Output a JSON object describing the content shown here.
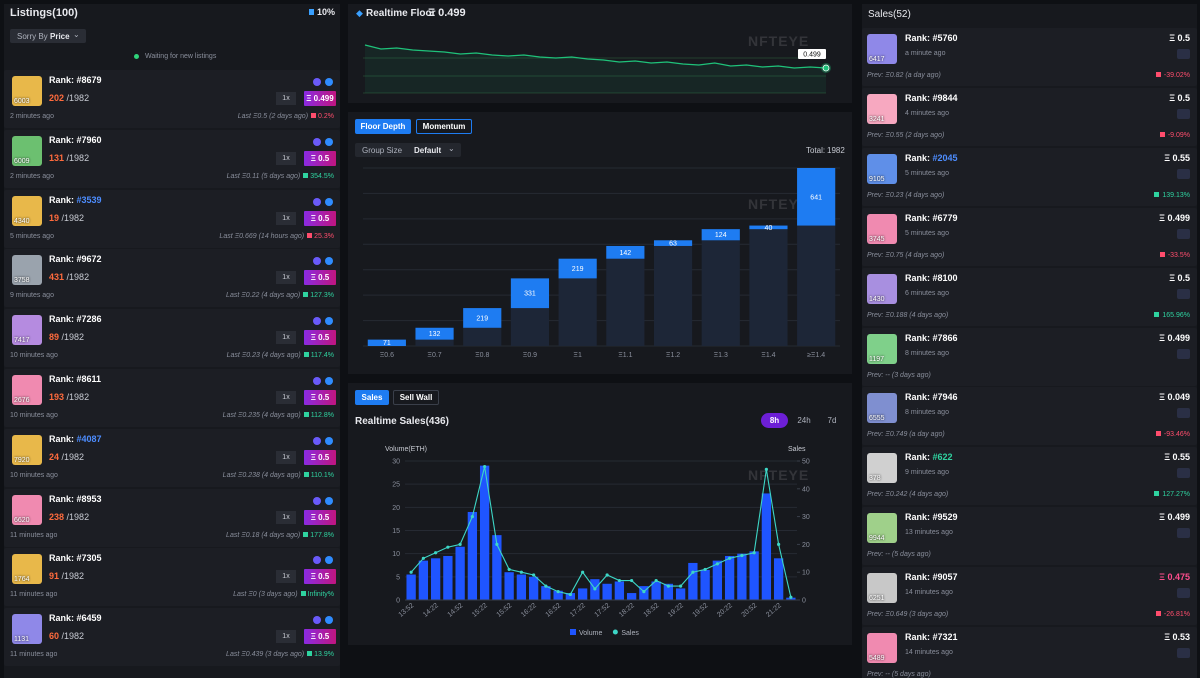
{
  "listings": {
    "title": "Listings(100)",
    "badge": "10%",
    "sort_label": "Sorry By",
    "sort_value": "Price",
    "status": "Waiting for new listings",
    "rank_label": "Rank:",
    "items": [
      {
        "rank": "#8679",
        "rank_color": "#ffffff",
        "avatar": "6003",
        "avatar_color": "#e8b84a",
        "position": "202",
        "total": "/1982",
        "qty": "1x",
        "price": "Ξ 0.499",
        "time": "2 minutes ago",
        "last": "Last Ξ0.5 (2 days ago)",
        "change": "0.2%",
        "change_color": "#ff4d6d"
      },
      {
        "rank": "#7960",
        "rank_color": "#ffffff",
        "avatar": "6009",
        "avatar_color": "#6cc070",
        "position": "131",
        "total": "/1982",
        "qty": "1x",
        "price": "Ξ 0.5",
        "time": "2 minutes ago",
        "last": "Last Ξ0.11 (5 days ago)",
        "change": "354.5%",
        "change_color": "#2fd3a0"
      },
      {
        "rank": "#3539",
        "rank_color": "#4d8dff",
        "avatar": "4340",
        "avatar_color": "#e8b84a",
        "position": "19",
        "total": "/1982",
        "qty": "1x",
        "price": "Ξ 0.5",
        "time": "5 minutes ago",
        "last": "Last Ξ0.669 (14 hours ago)",
        "change": "25.3%",
        "change_color": "#ff4d6d"
      },
      {
        "rank": "#9672",
        "rank_color": "#ffffff",
        "avatar": "3758",
        "avatar_color": "#9aa3ad",
        "position": "431",
        "total": "/1982",
        "qty": "1x",
        "price": "Ξ 0.5",
        "time": "9 minutes ago",
        "last": "Last Ξ0.22 (4 days ago)",
        "change": "127.3%",
        "change_color": "#2fd3a0"
      },
      {
        "rank": "#7286",
        "rank_color": "#ffffff",
        "avatar": "7417",
        "avatar_color": "#b58be0",
        "position": "89",
        "total": "/1982",
        "qty": "1x",
        "price": "Ξ 0.5",
        "time": "10 minutes ago",
        "last": "Last Ξ0.23 (4 days ago)",
        "change": "117.4%",
        "change_color": "#2fd3a0"
      },
      {
        "rank": "#8611",
        "rank_color": "#ffffff",
        "avatar": "2676",
        "avatar_color": "#f08ab0",
        "position": "193",
        "total": "/1982",
        "qty": "1x",
        "price": "Ξ 0.5",
        "time": "10 minutes ago",
        "last": "Last Ξ0.235 (4 days ago)",
        "change": "112.8%",
        "change_color": "#2fd3a0"
      },
      {
        "rank": "#4087",
        "rank_color": "#4d8dff",
        "avatar": "7920",
        "avatar_color": "#e8b84a",
        "position": "24",
        "total": "/1982",
        "qty": "1x",
        "price": "Ξ 0.5",
        "time": "10 minutes ago",
        "last": "Last Ξ0.238 (4 days ago)",
        "change": "110.1%",
        "change_color": "#2fd3a0"
      },
      {
        "rank": "#8953",
        "rank_color": "#ffffff",
        "avatar": "6620",
        "avatar_color": "#f08ab0",
        "position": "238",
        "total": "/1982",
        "qty": "1x",
        "price": "Ξ 0.5",
        "time": "11 minutes ago",
        "last": "Last Ξ0.18 (4 days ago)",
        "change": "177.8%",
        "change_color": "#2fd3a0"
      },
      {
        "rank": "#7305",
        "rank_color": "#ffffff",
        "avatar": "1764",
        "avatar_color": "#e8b84a",
        "position": "91",
        "total": "/1982",
        "qty": "1x",
        "price": "Ξ 0.5",
        "time": "11 minutes ago",
        "last": "Last Ξ0 (3 days ago)",
        "change": "Infinity%",
        "change_color": "#2fd3a0"
      },
      {
        "rank": "#6459",
        "rank_color": "#ffffff",
        "avatar": "1131",
        "avatar_color": "#8f88e8",
        "position": "60",
        "total": "/1982",
        "qty": "1x",
        "price": "Ξ 0.5",
        "time": "11 minutes ago",
        "last": "Last Ξ0.439 (3 days ago)",
        "change": "13.9%",
        "change_color": "#2fd3a0"
      }
    ]
  },
  "floor": {
    "title": "Realtime Floor",
    "current": "Ξ 0.499"
  },
  "depth": {
    "tabs": [
      "Floor Depth",
      "Momentum"
    ],
    "group_label": "Group Size",
    "group_value": "Default",
    "total_label": "Total:"
  },
  "sales_panel": {
    "tabs": [
      "Sales",
      "Sell Wall"
    ],
    "title": "Realtime Sales(436)",
    "ranges": [
      "8h",
      "24h",
      "7d"
    ]
  },
  "watermark": "NFTEYE",
  "sales": {
    "title": "Sales(52)",
    "rank_label": "Rank:",
    "items": [
      {
        "rank": "#5760",
        "rank_color": "#ffffff",
        "avatar": "6417",
        "avatar_color": "#8f88e8",
        "time": "a minute ago",
        "price": "Ξ 0.5",
        "price_color": "#ffffff",
        "prev": "Prev: Ξ0.82 (a day ago)",
        "change": "-39.02%",
        "change_color": "#ff4d6d"
      },
      {
        "rank": "#9844",
        "rank_color": "#ffffff",
        "avatar": "3241",
        "avatar_color": "#f7a8c0",
        "time": "4 minutes ago",
        "price": "Ξ 0.5",
        "price_color": "#ffffff",
        "prev": "Prev: Ξ0.55 (2 days ago)",
        "change": "-9.09%",
        "change_color": "#ff4d6d"
      },
      {
        "rank": "#2045",
        "rank_color": "#4d8dff",
        "avatar": "9105",
        "avatar_color": "#5f8fe8",
        "time": "5 minutes ago",
        "price": "Ξ 0.55",
        "price_color": "#ffffff",
        "prev": "Prev: Ξ0.23 (4 days ago)",
        "change": "139.13%",
        "change_color": "#2fd3a0"
      },
      {
        "rank": "#6779",
        "rank_color": "#ffffff",
        "avatar": "3745",
        "avatar_color": "#f08ab0",
        "time": "5 minutes ago",
        "price": "Ξ 0.499",
        "price_color": "#ffffff",
        "prev": "Prev: Ξ0.75 (4 days ago)",
        "change": "-33.5%",
        "change_color": "#ff4d6d"
      },
      {
        "rank": "#8100",
        "rank_color": "#ffffff",
        "avatar": "1430",
        "avatar_color": "#a88fe0",
        "time": "6 minutes ago",
        "price": "Ξ 0.5",
        "price_color": "#ffffff",
        "prev": "Prev: Ξ0.188 (4 days ago)",
        "change": "165.96%",
        "change_color": "#2fd3a0"
      },
      {
        "rank": "#7866",
        "rank_color": "#ffffff",
        "avatar": "1197",
        "avatar_color": "#7fd08a",
        "time": "8 minutes ago",
        "price": "Ξ 0.499",
        "price_color": "#ffffff",
        "prev": "Prev: -- (3 days ago)"
      },
      {
        "rank": "#7946",
        "rank_color": "#ffffff",
        "avatar": "6555",
        "avatar_color": "#7f8fd0",
        "time": "8 minutes ago",
        "price": "Ξ 0.049",
        "price_color": "#ffffff",
        "prev": "Prev: Ξ0.749 (a day ago)",
        "change": "-93.46%",
        "change_color": "#ff4d6d"
      },
      {
        "rank": "#622",
        "rank_color": "#2fd3a0",
        "avatar": "378",
        "avatar_color": "#d0d0d0",
        "time": "9 minutes ago",
        "price": "Ξ 0.55",
        "price_color": "#ffffff",
        "prev": "Prev: Ξ0.242 (4 days ago)",
        "change": "127.27%",
        "change_color": "#2fd3a0"
      },
      {
        "rank": "#9529",
        "rank_color": "#ffffff",
        "avatar": "9944",
        "avatar_color": "#9fd08a",
        "time": "13 minutes ago",
        "price": "Ξ 0.499",
        "price_color": "#ffffff",
        "prev": "Prev: -- (5 days ago)"
      },
      {
        "rank": "#9057",
        "rank_color": "#ffffff",
        "avatar": "6251",
        "avatar_color": "#c8c8c8",
        "time": "14 minutes ago",
        "price": "Ξ 0.475",
        "price_color": "#ff4d8d",
        "prev": "Prev: Ξ0.649 (3 days ago)",
        "change": "-26.81%",
        "change_color": "#ff4d6d"
      },
      {
        "rank": "#7321",
        "rank_color": "#ffffff",
        "avatar": "5489",
        "avatar_color": "#f08ab0",
        "time": "14 minutes ago",
        "price": "Ξ 0.53",
        "price_color": "#ffffff",
        "prev": "Prev: -- (5 days ago)"
      }
    ]
  },
  "chart_data": [
    {
      "type": "line",
      "color": "#1fc27a",
      "values": [
        0.522,
        0.518,
        0.519,
        0.517,
        0.516,
        0.515,
        0.513,
        0.514,
        0.512,
        0.511,
        0.512,
        0.51,
        0.509,
        0.51,
        0.508,
        0.507,
        0.505,
        0.506,
        0.504,
        0.505,
        0.503,
        0.502,
        0.504,
        0.501,
        0.502,
        0.5,
        0.501,
        0.499,
        0.5,
        0.499
      ]
    },
    {
      "type": "waterfall",
      "color": "#1e7cf2",
      "total": 1982,
      "categories": [
        "Ξ0.6",
        "Ξ0.7",
        "Ξ0.8",
        "Ξ0.9",
        "Ξ1",
        "Ξ1.1",
        "Ξ1.2",
        "Ξ1.3",
        "Ξ1.4",
        "≥Ξ1.4"
      ],
      "values": [
        71,
        132,
        219,
        331,
        219,
        142,
        63,
        124,
        40,
        641
      ]
    },
    {
      "type": "bar_line",
      "categories": [
        "13:52",
        null,
        "14:22",
        null,
        "14:52",
        null,
        "15:22",
        null,
        "15:52",
        null,
        "16:22",
        null,
        "16:52",
        null,
        "17:22",
        null,
        "17:52",
        null,
        "18:22",
        null,
        "18:52",
        null,
        "19:22",
        null,
        "19:52",
        null,
        "20:22",
        null,
        "20:52",
        null,
        "21:22",
        null
      ],
      "y_label": "Volume(ETH)",
      "y2_label": "Sales",
      "ylim": [
        0,
        30
      ],
      "yticks": [
        0,
        5,
        10,
        15,
        20,
        25,
        30
      ],
      "y2lim": [
        0,
        50
      ],
      "y2ticks": [
        0,
        10,
        20,
        30,
        40,
        50
      ],
      "grid": true,
      "legend": "bottom",
      "series": [
        {
          "name": "Volume",
          "color": "#1f55ff",
          "values": [
            5.5,
            8.5,
            9,
            9.5,
            11.5,
            19,
            29,
            14,
            6,
            5.5,
            5,
            3,
            2,
            1.5,
            2.5,
            4.5,
            3.5,
            4,
            1.5,
            3,
            4,
            3.5,
            2.5,
            8,
            6.5,
            8.5,
            9.5,
            10,
            10.5,
            23,
            9,
            0.5
          ]
        },
        {
          "name": "Sales",
          "color": "#3dd6c6",
          "axis": "y2",
          "values": [
            10,
            15,
            17,
            19,
            20,
            30,
            48,
            20,
            11,
            10,
            9,
            5,
            3,
            2,
            10,
            4,
            9,
            7,
            7,
            3,
            7,
            5,
            5,
            10,
            11,
            13,
            15,
            16,
            17,
            47,
            20,
            1
          ]
        }
      ]
    }
  ]
}
